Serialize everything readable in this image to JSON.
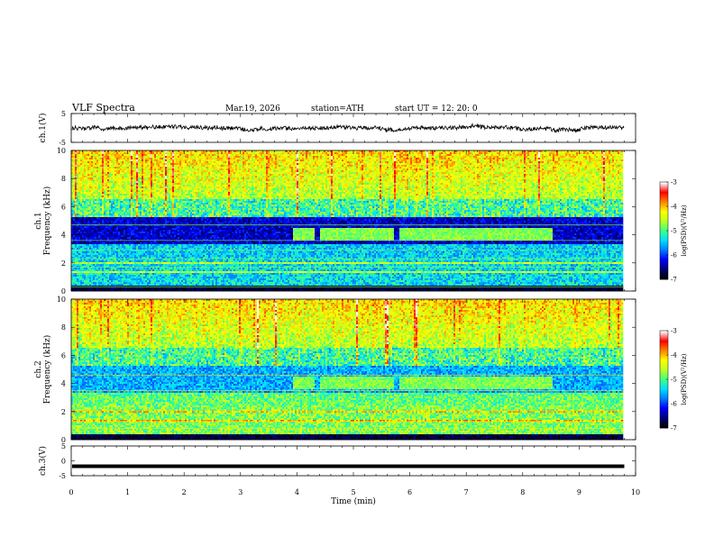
{
  "header": {
    "title": "VLF  Spectra",
    "date": "Mar.19, 2026",
    "station": "station=ATH",
    "start": "start  UT  =    12: 20: 0"
  },
  "chart_data": [
    {
      "type": "line",
      "panel": "ch1-waveform",
      "ylabel": "ch.1(V)",
      "ylim": [
        -5,
        5
      ],
      "y_ticks": [
        "5",
        "-5"
      ],
      "xlim": [
        0,
        10
      ],
      "x_extent_min": 9.8,
      "series": [
        {
          "values_range": [
            -1.5,
            1.5
          ],
          "mean": 0.0
        }
      ]
    },
    {
      "type": "heatmap",
      "panel": "ch1-spectrogram",
      "ylabel": "ch.1\nFrequency  (kHz)",
      "xlim": [
        0,
        10
      ],
      "ylim": [
        0,
        10
      ],
      "y_ticks": [
        "0",
        "2",
        "4",
        "6",
        "8",
        "10"
      ],
      "colorbar": {
        "label": "log(PSD)(V²/Hz)",
        "ticks": [
          "-3",
          "-4",
          "-5",
          "-6",
          "-7"
        ],
        "range": [
          -7,
          -3
        ]
      },
      "features": {
        "band_3_5_to_4_5kHz_active_minutes": [
          [
            3.9,
            4.3
          ],
          [
            4.4,
            5.7
          ],
          [
            5.8,
            8.5
          ]
        ]
      }
    },
    {
      "type": "heatmap",
      "panel": "ch2-spectrogram",
      "ylabel": "ch.2\nFrequency  (kHz)",
      "xlim": [
        0,
        10
      ],
      "ylim": [
        0,
        10
      ],
      "y_ticks": [
        "0",
        "2",
        "4",
        "6",
        "8",
        "10"
      ],
      "colorbar": {
        "label": "log(PSD)(V²/Hz)",
        "ticks": [
          "-3",
          "-4",
          "-5",
          "-6",
          "-7"
        ],
        "range": [
          -7,
          -3
        ]
      },
      "features": {
        "band_3_5_to_4_5kHz_active_minutes": [
          [
            3.9,
            4.3
          ],
          [
            4.4,
            5.7
          ],
          [
            5.8,
            8.5
          ]
        ]
      }
    },
    {
      "type": "line",
      "panel": "ch3-waveform",
      "ylabel": "ch.3(V)",
      "ylim": [
        -5,
        5
      ],
      "y_ticks": [
        "5",
        "0",
        "-5"
      ],
      "xlim": [
        0,
        10
      ],
      "x_extent_min": 9.8,
      "series": [
        {
          "constant_value": -1.8
        }
      ]
    }
  ],
  "x_axis": {
    "label": "Time  (min)",
    "ticks": [
      "0",
      "1",
      "2",
      "3",
      "4",
      "5",
      "6",
      "7",
      "8",
      "9",
      "10"
    ]
  },
  "colors": {
    "axis": "#000000",
    "background": "#ffffff",
    "colormap": [
      "#000000",
      "#00007f",
      "#0000ff",
      "#0080ff",
      "#00e0ff",
      "#40ff80",
      "#c0ff20",
      "#ffff00",
      "#ff8000",
      "#ff0000",
      "#ffffff"
    ]
  }
}
